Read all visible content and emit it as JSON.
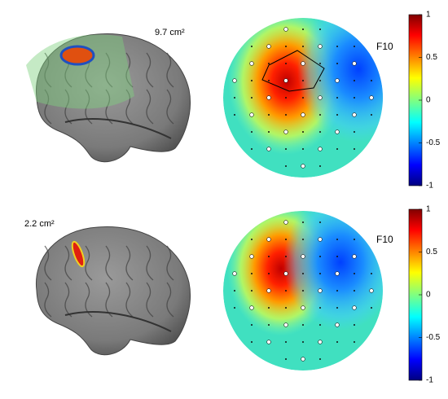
{
  "panels": [
    {
      "area_label": "9.7 cm²",
      "electrode_label": "F10",
      "colorbar_ticks": [
        1,
        0.5,
        0,
        -0.5,
        -1
      ]
    },
    {
      "area_label": "2.2 cm²",
      "electrode_label": "F10",
      "colorbar_ticks": [
        1,
        0.5,
        0,
        -0.5,
        -1
      ]
    }
  ]
}
